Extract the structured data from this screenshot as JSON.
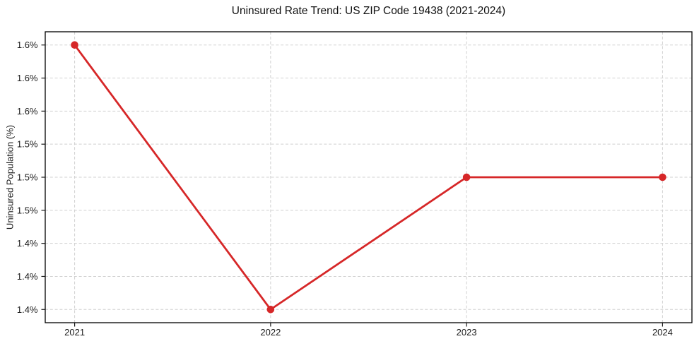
{
  "chart_data": {
    "type": "line",
    "title": "Uninsured Rate Trend: US ZIP Code 19438 (2021-2024)",
    "xlabel": "",
    "ylabel": "Uninsured Population (%)",
    "x": [
      2021,
      2022,
      2023,
      2024
    ],
    "values": [
      1.6,
      1.4,
      1.5,
      1.5
    ],
    "x_ticks": {
      "values": [
        2021,
        2022,
        2023,
        2024
      ],
      "labels": [
        "2021",
        "2022",
        "2023",
        "2024"
      ]
    },
    "y_ticks": {
      "values": [
        1.4,
        1.425,
        1.45,
        1.475,
        1.5,
        1.525,
        1.55,
        1.575,
        1.6
      ],
      "labels": [
        "1.4%",
        "1.4%",
        "1.4%",
        "1.5%",
        "1.5%",
        "1.5%",
        "1.6%",
        "1.6%",
        "1.6%"
      ]
    },
    "xlim": [
      2020.85,
      2024.15
    ],
    "ylim": [
      1.39,
      1.61
    ],
    "grid": true,
    "legend": "none",
    "marker": "circle",
    "colors": {
      "line": "#d62728",
      "marker": "#d62728",
      "grid": "#d0d0d0",
      "axis": "#000000",
      "text": "#1a1a1a"
    }
  }
}
